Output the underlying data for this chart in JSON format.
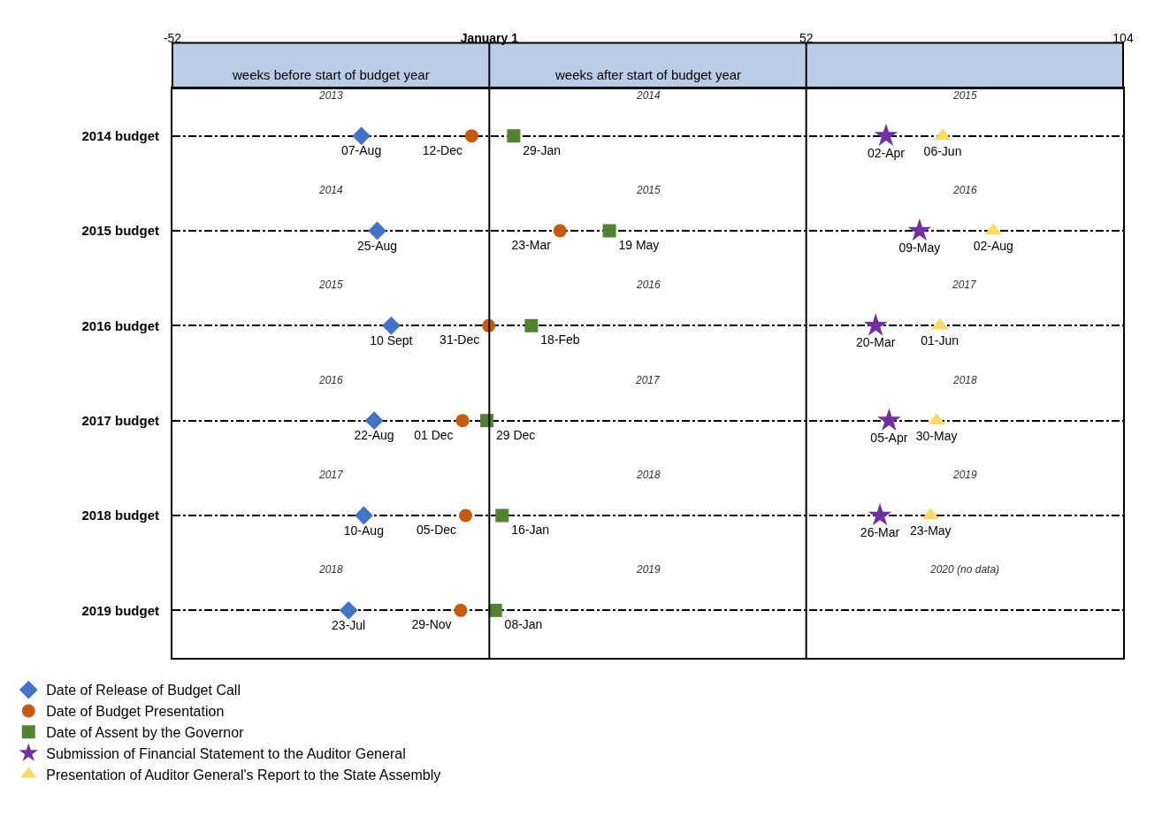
{
  "chart_data": {
    "type": "scatter",
    "orientation": "horizontal",
    "categories": [
      "2014 budget",
      "2015 budget",
      "2016 budget",
      "2017 budget",
      "2018 budget",
      "2019 budget"
    ],
    "xlim": [
      -52,
      104
    ],
    "xticks": [
      -52,
      {
        "value": 0,
        "label": "January 1"
      },
      52,
      104
    ],
    "grid": "y",
    "line_style": "dashed",
    "legend": "bottom left",
    "ref_lines": [
      {
        "axis": "x",
        "value": 0,
        "color": "#000000",
        "line_style": "solid"
      },
      {
        "axis": "x",
        "value": 52,
        "color": "#000000",
        "line_style": "solid"
      }
    ],
    "series": [
      {
        "name": "Date of Release of Budget Call",
        "color": "#4472c4",
        "marker": "diamond",
        "values": [
          -21.0,
          -18.4,
          -16.1,
          -18.9,
          -20.6,
          -23.1
        ],
        "value_labels": [
          "07-Aug",
          "25-Aug",
          "10 Sept",
          "22-Aug",
          "10-Aug",
          "23-Jul"
        ]
      },
      {
        "name": "Date of Budget Presentation",
        "color": "#c55a11",
        "marker": "circle",
        "values": [
          -2.9,
          11.6,
          -0.1,
          -4.4,
          -3.9,
          -4.7
        ],
        "value_labels": [
          "12-Dec",
          "23-Mar",
          "31-Dec",
          "01 Dec",
          "05-Dec",
          "29-Nov"
        ]
      },
      {
        "name": "Date of Assent by the Governor",
        "color": "#548235",
        "marker": "square",
        "values": [
          4.0,
          19.7,
          6.9,
          -0.4,
          2.1,
          1.0
        ],
        "value_labels": [
          "29-Jan",
          "19 May",
          "18-Feb",
          "29 Dec",
          "16-Jan",
          "08-Jan"
        ]
      },
      {
        "name": "Submission of Financial Statement to the Auditor General",
        "color": "#7030a0",
        "marker": "star",
        "values": [
          65.1,
          70.6,
          63.4,
          65.6,
          64.1,
          null
        ],
        "value_labels": [
          "02-Apr",
          "09-May",
          "20-Mar",
          "05-Apr",
          "26-Mar",
          null
        ]
      },
      {
        "name": "Presentation of Auditor General's Report to the State Assembly",
        "color": "#ffd966",
        "marker": "triangle",
        "values": [
          74.4,
          82.7,
          73.9,
          73.4,
          72.4,
          null
        ],
        "value_labels": [
          "06-Jun",
          "02-Aug",
          "01-Jun",
          "30-May",
          "23-May",
          null
        ]
      }
    ],
    "annotations": [
      "weeks before start of budget year",
      "weeks after start of budget year",
      "2013",
      "2014",
      "2015",
      "2014",
      "2015",
      "2016",
      "2015",
      "2016",
      "2017",
      "2016",
      "2017",
      "2018",
      "2017",
      "2018",
      "2019",
      "2018",
      "2019",
      "2020 (no data)"
    ]
  }
}
